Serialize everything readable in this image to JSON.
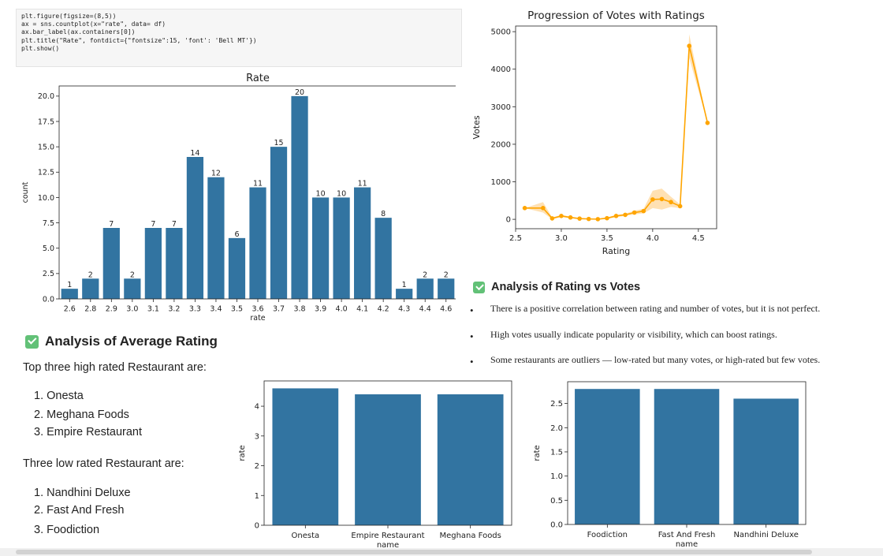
{
  "code": {
    "lines": [
      "plt.figure(figsize=(8,5))",
      "ax = sns.countplot(x=\"rate\", data= df)",
      "ax.bar_label(ax.containers[0])",
      "plt.title(\"Rate\", fontdict={\"fontsize\":15, 'font': 'Bell MT'})",
      "plt.show()"
    ]
  },
  "analysis_avg": {
    "heading": "Analysis of Average Rating",
    "top_intro": "Top three high rated Restaurant are:",
    "top_list": [
      "1. Onesta",
      "2. Meghana Foods",
      "3. Empire Restaurant"
    ],
    "low_intro": "Three low rated Restaurant are:",
    "low_list": [
      "1. Nandhini Deluxe",
      "2. Fast And Fresh",
      "3. Foodiction"
    ]
  },
  "analysis_votes": {
    "heading": "Analysis of Rating vs Votes",
    "bullets": [
      "There is a positive correlation between rating and number of votes, but it is not perfect.",
      "High votes usually indicate popularity or visibility, which can boost ratings.",
      "Some restaurants are outliers — low-rated but many votes, or high-rated but few votes."
    ]
  },
  "colors": {
    "bar": "#3274a1",
    "line": "#ffa500",
    "band": "#ffd9a0",
    "check": "#62c177"
  },
  "chart_data": [
    {
      "type": "bar",
      "title": "Rate",
      "xlabel": "rate",
      "ylabel": "count",
      "categories": [
        "2.6",
        "2.8",
        "2.9",
        "3.0",
        "3.1",
        "3.2",
        "3.3",
        "3.4",
        "3.5",
        "3.6",
        "3.7",
        "3.8",
        "3.9",
        "4.0",
        "4.1",
        "4.2",
        "4.3",
        "4.4",
        "4.6"
      ],
      "values": [
        1,
        2,
        7,
        2,
        7,
        7,
        14,
        12,
        6,
        11,
        15,
        20,
        10,
        10,
        11,
        8,
        1,
        2,
        2
      ],
      "data_labels": [
        "1",
        "2",
        "7",
        "2",
        "7",
        "7",
        "14",
        "12",
        "6",
        "11",
        "15",
        "20",
        "10",
        "10",
        "11",
        "8",
        "1",
        "2",
        "2"
      ],
      "yticks": [
        "0.0",
        "2.5",
        "5.0",
        "7.5",
        "10.0",
        "12.5",
        "15.0",
        "17.5",
        "20.0"
      ],
      "ylim": [
        0,
        21
      ]
    },
    {
      "type": "line",
      "title": "Progression of Votes with Ratings",
      "xlabel": "Rating",
      "ylabel": "Votes",
      "x": [
        2.6,
        2.8,
        2.9,
        3.0,
        3.1,
        3.2,
        3.3,
        3.4,
        3.5,
        3.6,
        3.7,
        3.8,
        3.9,
        4.0,
        4.1,
        4.2,
        4.3,
        4.4,
        4.6
      ],
      "y": [
        300,
        300,
        25,
        90,
        50,
        20,
        10,
        5,
        30,
        90,
        120,
        180,
        220,
        530,
        540,
        460,
        350,
        4620,
        2570
      ],
      "band_low": [
        300,
        180,
        0,
        60,
        30,
        10,
        0,
        0,
        10,
        60,
        90,
        130,
        160,
        300,
        260,
        330,
        300,
        4300,
        2570
      ],
      "band_high": [
        300,
        460,
        50,
        120,
        70,
        30,
        20,
        10,
        50,
        120,
        150,
        230,
        280,
        760,
        820,
        600,
        400,
        4930,
        2570
      ],
      "xticks": [
        "2.5",
        "3.0",
        "3.5",
        "4.0",
        "4.5"
      ],
      "yticks": [
        "0",
        "1000",
        "2000",
        "3000",
        "4000",
        "5000"
      ],
      "xlim": [
        2.5,
        4.7
      ],
      "ylim": [
        -250,
        5150
      ]
    },
    {
      "type": "bar",
      "title": "",
      "xlabel": "name",
      "ylabel": "rate",
      "categories": [
        "Onesta",
        "Empire Restaurant",
        "Meghana Foods"
      ],
      "values": [
        4.6,
        4.4,
        4.4
      ],
      "yticks": [
        "0",
        "1",
        "2",
        "3",
        "4"
      ],
      "ylim": [
        0,
        4.85
      ]
    },
    {
      "type": "bar",
      "title": "",
      "xlabel": "name",
      "ylabel": "rate",
      "categories": [
        "Foodiction",
        "Fast And Fresh",
        "Nandhini Deluxe"
      ],
      "values": [
        2.8,
        2.8,
        2.6
      ],
      "yticks": [
        "0.0",
        "0.5",
        "1.0",
        "1.5",
        "2.0",
        "2.5"
      ],
      "ylim": [
        0,
        2.95
      ]
    }
  ]
}
